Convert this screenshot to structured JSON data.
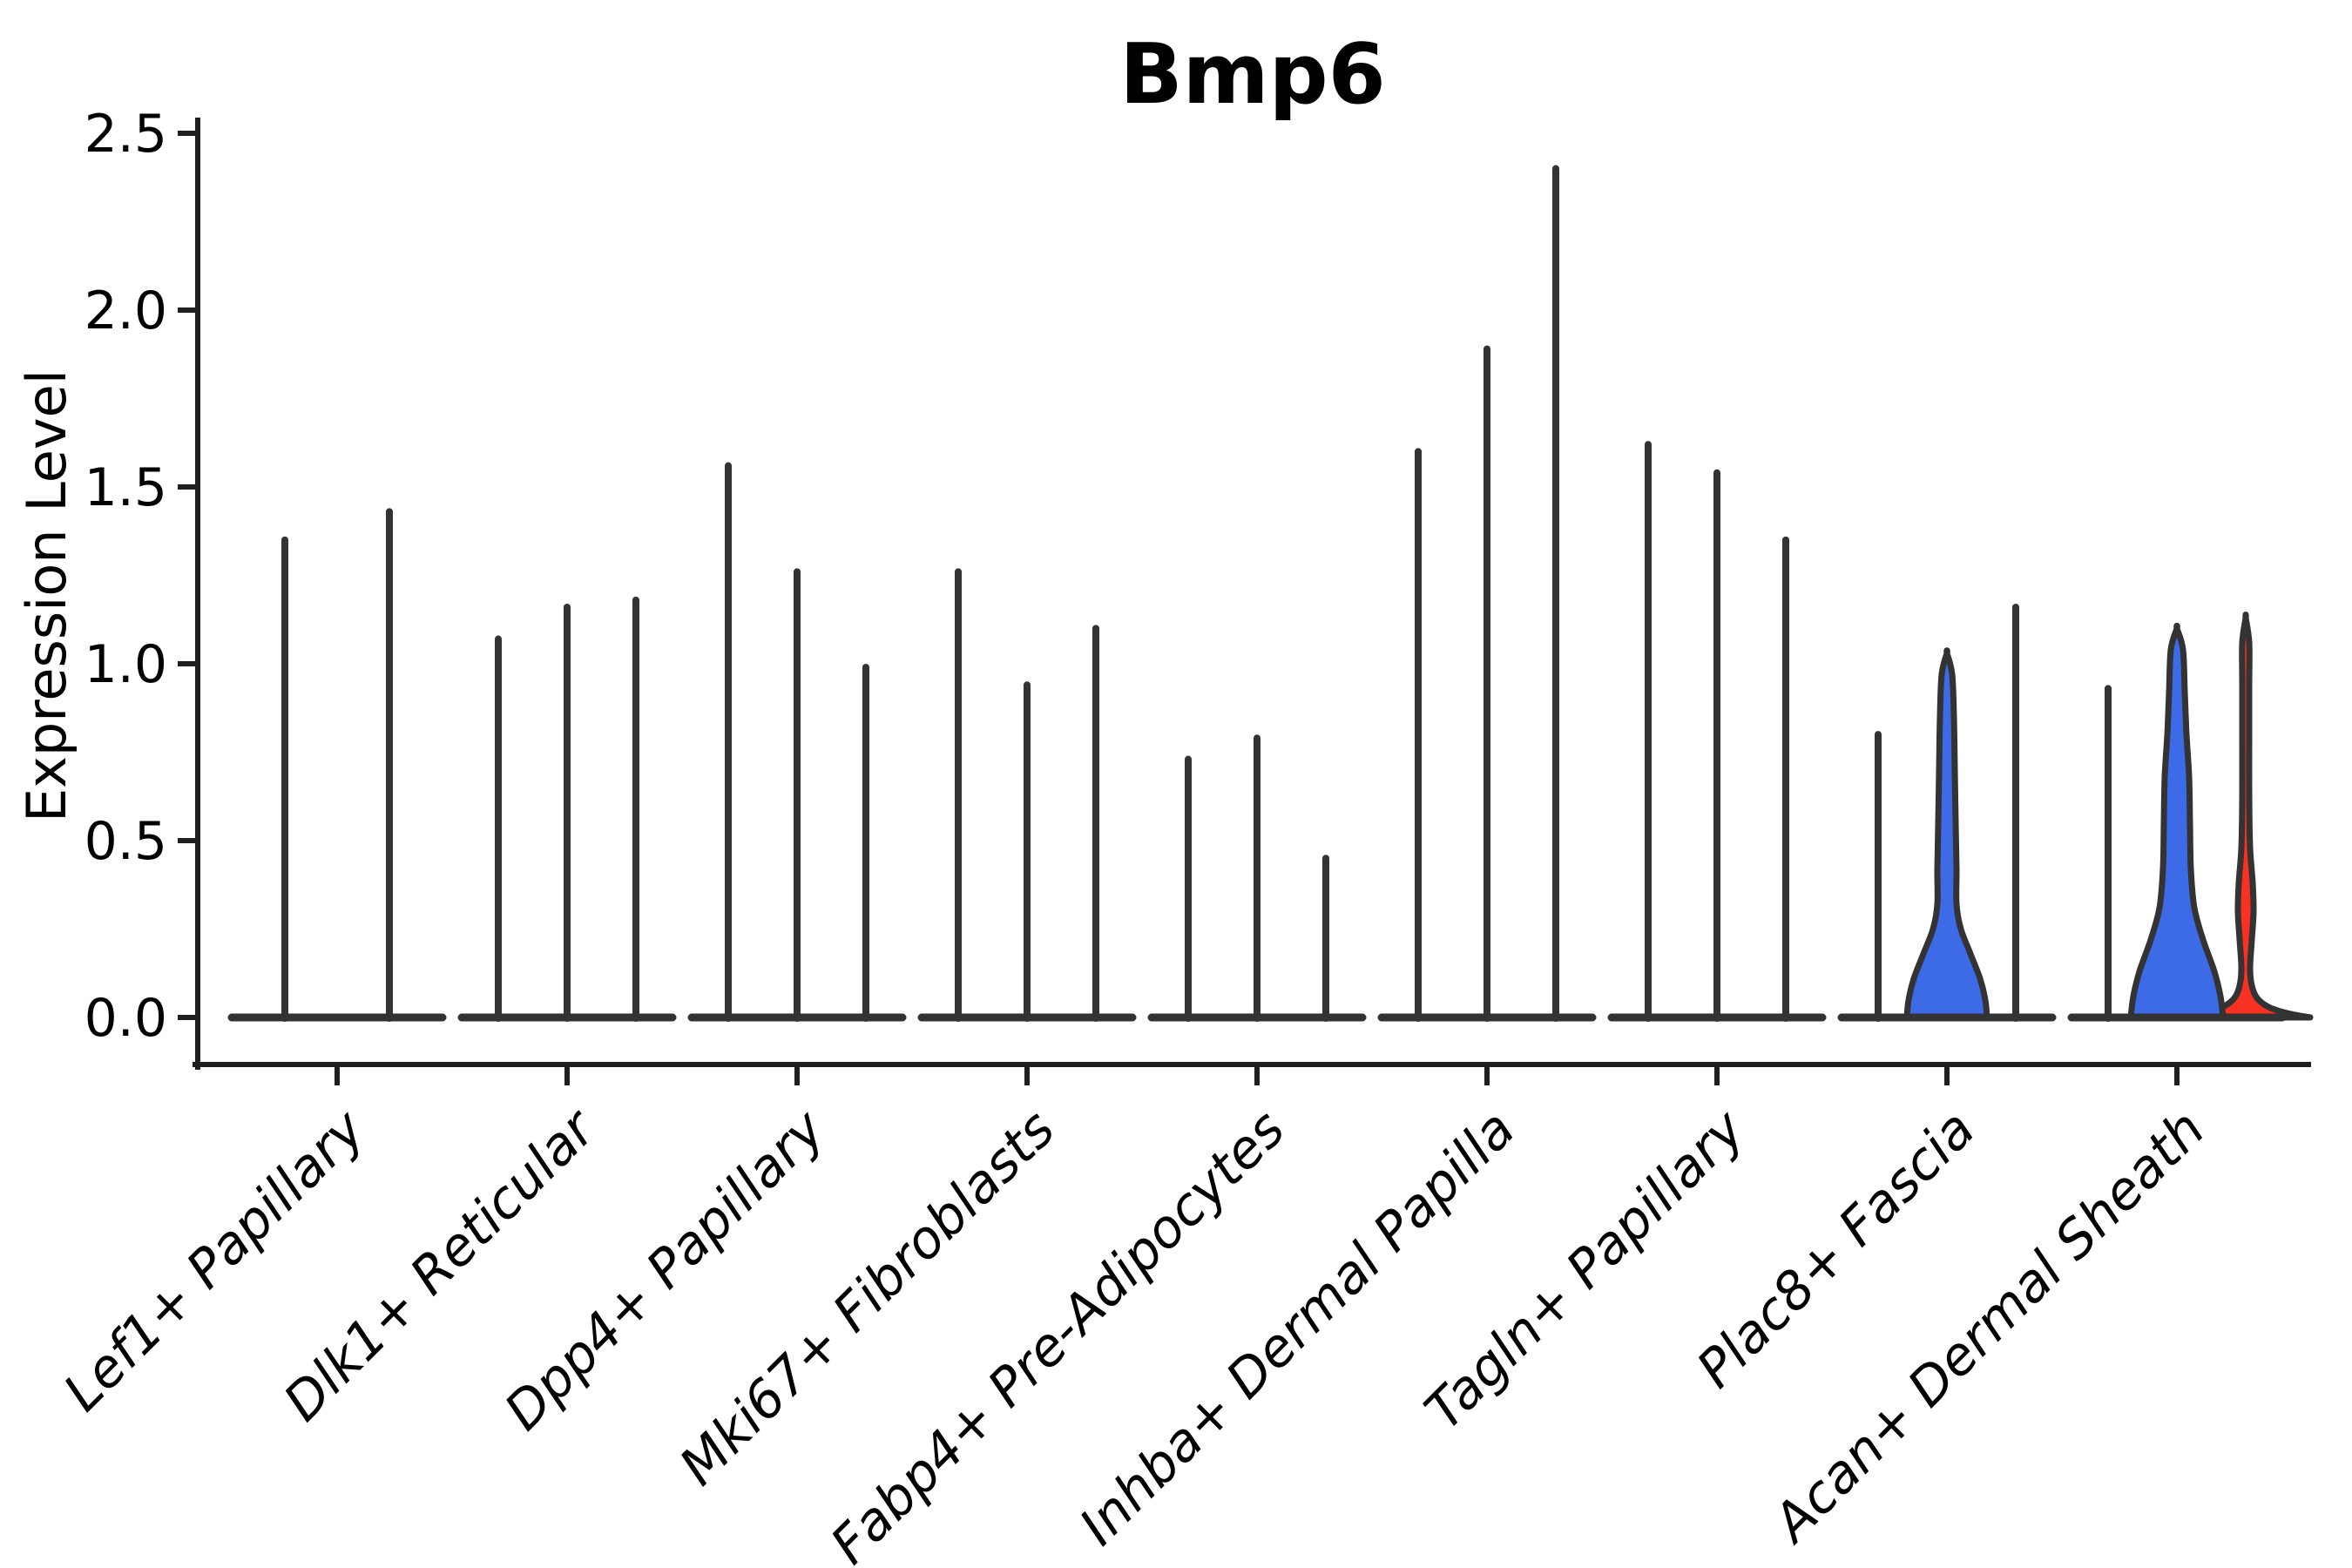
{
  "chart_data": {
    "type": "violin",
    "title": "Bmp6",
    "ylabel": "Expression Level",
    "xlabel": "",
    "ylim": [
      -0.13,
      2.55
    ],
    "grid": false,
    "legend": "none",
    "yticks": [
      0.0,
      0.5,
      1.0,
      1.5,
      2.0,
      2.5
    ],
    "ytick_labels": [
      "0.0",
      "0.5",
      "1.0",
      "1.5",
      "2.0",
      "2.5"
    ],
    "categories": [
      "Lef1+ Papillary",
      "Dlk1+ Reticular",
      "Dpp4+ Papillary",
      "Mki67+ Fibroblasts",
      "Fabp4+ Pre-Adipocytes",
      "Inhba+ Dermal Papilla",
      "Tagln+ Papillary",
      "Plac8+ Fascia",
      "Acan+ Dermal Sheath"
    ],
    "colors": {
      "outline": "#333333",
      "axis": "#1f1f1f",
      "blue": "#3D6BE8",
      "red": "#F93122",
      "text": "#000000",
      "background": "#ffffff"
    },
    "groups": [
      {
        "label": "Lef1+ Papillary",
        "center": 387,
        "violins": [
          {
            "kind": "spike",
            "offset": -60,
            "max": 1.36
          },
          {
            "kind": "spike",
            "offset": 60,
            "max": 1.44
          }
        ]
      },
      {
        "label": "Dlk1+ Reticular",
        "center": 651,
        "violins": [
          {
            "kind": "spike",
            "offset": -79,
            "max": 1.08
          },
          {
            "kind": "spike",
            "offset": 0,
            "max": 1.17
          },
          {
            "kind": "spike",
            "offset": 79,
            "max": 1.19
          }
        ]
      },
      {
        "label": "Dpp4+ Papillary",
        "center": 915,
        "violins": [
          {
            "kind": "spike",
            "offset": -79,
            "max": 1.57
          },
          {
            "kind": "spike",
            "offset": 0,
            "max": 1.27
          },
          {
            "kind": "spike",
            "offset": 79,
            "max": 1.0
          }
        ]
      },
      {
        "label": "Mki67+ Fibroblasts",
        "center": 1179,
        "violins": [
          {
            "kind": "spike",
            "offset": -79,
            "max": 1.27
          },
          {
            "kind": "spike",
            "offset": 0,
            "max": 0.95
          },
          {
            "kind": "spike",
            "offset": 79,
            "max": 1.11
          }
        ]
      },
      {
        "label": "Fabp4+ Pre-Adipocytes",
        "center": 1443,
        "violins": [
          {
            "kind": "spike",
            "offset": -79,
            "max": 0.74
          },
          {
            "kind": "spike",
            "offset": 0,
            "max": 0.8
          },
          {
            "kind": "spike",
            "offset": 79,
            "max": 0.46
          }
        ]
      },
      {
        "label": "Inhba+ Dermal Papilla",
        "center": 1707,
        "violins": [
          {
            "kind": "spike",
            "offset": -79,
            "max": 1.61
          },
          {
            "kind": "spike",
            "offset": 0,
            "max": 1.9
          },
          {
            "kind": "spike",
            "offset": 79,
            "max": 2.41
          }
        ]
      },
      {
        "label": "Tagln+ Papillary",
        "center": 1971,
        "violins": [
          {
            "kind": "spike",
            "offset": -79,
            "max": 1.63
          },
          {
            "kind": "spike",
            "offset": 0,
            "max": 1.55
          },
          {
            "kind": "spike",
            "offset": 79,
            "max": 1.36
          }
        ]
      },
      {
        "label": "Plac8+ Fascia",
        "center": 2235,
        "violins": [
          {
            "kind": "spike",
            "offset": -79,
            "max": 0.81
          },
          {
            "kind": "violin",
            "offset": 0,
            "max": 1.03,
            "fill": "blue",
            "profile": [
              [
                0,
                46
              ],
              [
                0.05,
                44
              ],
              [
                0.11,
                38
              ],
              [
                0.18,
                27
              ],
              [
                0.25,
                16
              ],
              [
                0.32,
                11
              ],
              [
                0.42,
                11
              ],
              [
                0.55,
                10
              ],
              [
                0.7,
                9
              ],
              [
                0.85,
                8
              ],
              [
                0.97,
                6
              ],
              [
                1.03,
                0
              ]
            ]
          },
          {
            "kind": "spike",
            "offset": 79,
            "max": 1.17
          }
        ]
      },
      {
        "label": "Acan+ Dermal Sheath",
        "center": 2499,
        "violins": [
          {
            "kind": "spike",
            "offset": -79,
            "max": 0.94
          },
          {
            "kind": "violin",
            "offset": 0,
            "max": 1.1,
            "fill": "blue",
            "profile": [
              [
                0,
                53
              ],
              [
                0.06,
                50
              ],
              [
                0.13,
                43
              ],
              [
                0.22,
                30
              ],
              [
                0.31,
                20
              ],
              [
                0.42,
                16
              ],
              [
                0.55,
                15
              ],
              [
                0.68,
                14
              ],
              [
                0.8,
                11
              ],
              [
                0.92,
                9
              ],
              [
                1.04,
                7
              ],
              [
                1.1,
                0
              ]
            ]
          },
          {
            "kind": "violin",
            "offset": 79,
            "max": 1.13,
            "fill": "red",
            "profile": [
              [
                0,
                74
              ],
              [
                0.012,
                48
              ],
              [
                0.03,
                26
              ],
              [
                0.055,
                13
              ],
              [
                0.09,
                7
              ],
              [
                0.14,
                5
              ],
              [
                0.22,
                7
              ],
              [
                0.3,
                9
              ],
              [
                0.38,
                8
              ],
              [
                0.48,
                5
              ],
              [
                0.62,
                4
              ],
              [
                0.8,
                4
              ],
              [
                0.95,
                4
              ],
              [
                1.06,
                4
              ],
              [
                1.13,
                0
              ]
            ]
          }
        ]
      }
    ]
  }
}
